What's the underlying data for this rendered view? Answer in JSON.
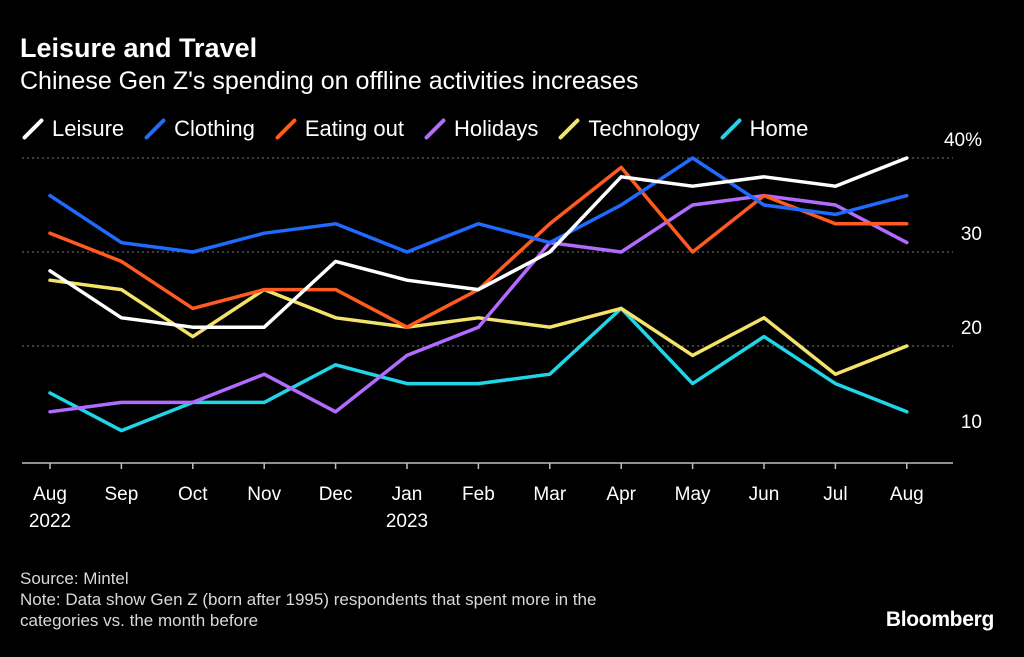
{
  "colors": {
    "background": "#000000",
    "grid": "#7a7a7a",
    "axis": "#bfbfbf",
    "text": "#ffffff",
    "muted": "#d9d9d9"
  },
  "header": {
    "title": "Leisure and Travel",
    "subtitle": "Chinese Gen Z's spending on offline activities increases"
  },
  "chart_data": {
    "type": "line",
    "title": "Leisure and Travel",
    "subtitle": "Chinese Gen Z's spending on offline activities increases",
    "xlabel": "",
    "ylabel": "",
    "categories": [
      "Aug",
      "Sep",
      "Oct",
      "Nov",
      "Dec",
      "Jan",
      "Feb",
      "Mar",
      "Apr",
      "May",
      "Jun",
      "Jul",
      "Aug"
    ],
    "category_sublabels": [
      "2022",
      "",
      "",
      "",
      "",
      "2023",
      "",
      "",
      "",
      "",
      "",
      "",
      ""
    ],
    "ylim": [
      9,
      40
    ],
    "yticks": [
      10,
      20,
      30,
      40
    ],
    "ytick_labels": [
      "10",
      "20",
      "30",
      "40%"
    ],
    "grid": true,
    "legend_position": "top-left",
    "series": [
      {
        "name": "Leisure",
        "color": "#ffffff",
        "values": [
          28,
          23,
          22,
          22,
          29,
          27,
          26,
          30,
          38,
          37,
          38,
          37,
          40
        ]
      },
      {
        "name": "Clothing",
        "color": "#1f6bff",
        "values": [
          36,
          31,
          30,
          32,
          33,
          30,
          33,
          31,
          35,
          40,
          35,
          34,
          36
        ]
      },
      {
        "name": "Eating out",
        "color": "#ff5a1f",
        "values": [
          32,
          29,
          24,
          26,
          26,
          22,
          26,
          33,
          39,
          30,
          36,
          33,
          33
        ]
      },
      {
        "name": "Holidays",
        "color": "#b36bff",
        "values": [
          13,
          14,
          14,
          17,
          13,
          19,
          22,
          31,
          30,
          35,
          36,
          35,
          31
        ]
      },
      {
        "name": "Technology",
        "color": "#f4e36b",
        "values": [
          27,
          26,
          21,
          26,
          23,
          22,
          23,
          22,
          24,
          19,
          23,
          17,
          20
        ]
      },
      {
        "name": "Home",
        "color": "#1fd6e8",
        "values": [
          15,
          11,
          14,
          14,
          18,
          16,
          16,
          17,
          24,
          16,
          21,
          16,
          13
        ]
      }
    ]
  },
  "footer": {
    "source": "Source: Mintel",
    "note_line1": "Note: Data show Gen Z (born after 1995) respondents that spent more in the",
    "note_line2": "categories vs. the month before",
    "brand": "Bloomberg"
  }
}
